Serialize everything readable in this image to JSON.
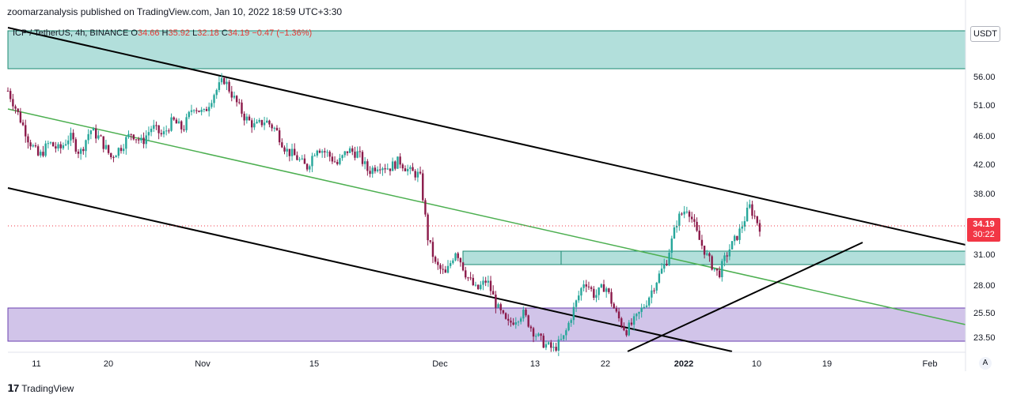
{
  "header": {
    "attribution": "zoomarzanalysis published on TradingView.com, Jan 10, 2022 18:59 UTC+3:30"
  },
  "legend": {
    "symbol": "ICP / TetherUS, 4h, BINANCE",
    "open_label": "O",
    "open": "34.66",
    "high_label": "H",
    "high": "35.92",
    "low_label": "L",
    "low": "32.18",
    "close_label": "C",
    "close": "34.19",
    "change": "−0.47 (−1.36%)"
  },
  "currency": "USDT",
  "last_price": {
    "price": "34.19",
    "countdown": "30:22"
  },
  "auto_button": "A",
  "footer": {
    "logo_text": "TradingView"
  },
  "colors": {
    "up": "#26a69a",
    "down": "#ef5350",
    "wick_dark": "#8b1a4a",
    "green_zone": "#b2dfdb",
    "green_zone_border": "#1b8a70",
    "purple_zone": "#d1c4e9",
    "purple_zone_border": "#6a3fb0",
    "channel_line": "#000000",
    "mid_line": "#4caf50",
    "price_line": "#f23645"
  },
  "chart_data": {
    "type": "candlestick",
    "y_axis_ticks": [
      56.0,
      51.0,
      46.0,
      42.0,
      38.0,
      31.0,
      28.0,
      25.5,
      23.5
    ],
    "y_axis_labels": [
      "56.00",
      "51.00",
      "46.00",
      "42.00",
      "38.00",
      "31.00",
      "28.00",
      "25.50",
      "23.50"
    ],
    "x_axis_labels": [
      "11",
      "20",
      "Nov",
      "15",
      "Dec",
      "13",
      "22",
      "2022",
      "10",
      "19",
      "Feb"
    ],
    "x_axis_bold": [
      "2022"
    ],
    "timeframe": "4h",
    "last_close": 34.19,
    "path_points": [
      [
        0,
        53.5
      ],
      [
        0.02,
        49.5
      ],
      [
        0.04,
        45.5
      ],
      [
        0.06,
        43.0
      ],
      [
        0.08,
        45.0
      ],
      [
        0.1,
        44.0
      ],
      [
        0.12,
        46.0
      ],
      [
        0.14,
        43.5
      ],
      [
        0.16,
        47.0
      ],
      [
        0.18,
        45.5
      ],
      [
        0.2,
        43.0
      ],
      [
        0.22,
        44.5
      ],
      [
        0.24,
        46.5
      ],
      [
        0.26,
        45.0
      ],
      [
        0.28,
        47.5
      ],
      [
        0.3,
        46.0
      ],
      [
        0.32,
        48.5
      ],
      [
        0.34,
        47.0
      ],
      [
        0.36,
        51.0
      ],
      [
        0.38,
        49.5
      ],
      [
        0.4,
        53.0
      ],
      [
        0.42,
        55.5
      ],
      [
        0.44,
        52.0
      ],
      [
        0.46,
        49.0
      ],
      [
        0.48,
        47.5
      ],
      [
        0.5,
        48.5
      ],
      [
        0.52,
        47.0
      ],
      [
        0.54,
        44.0
      ],
      [
        0.56,
        43.0
      ],
      [
        0.58,
        41.5
      ],
      [
        0.6,
        44.5
      ],
      [
        0.62,
        43.5
      ],
      [
        0.64,
        42.0
      ],
      [
        0.66,
        44.0
      ],
      [
        0.68,
        43.5
      ],
      [
        0.7,
        41.0
      ],
      [
        0.72,
        42.0
      ],
      [
        0.74,
        41.5
      ],
      [
        0.76,
        42.5
      ],
      [
        0.78,
        41.0
      ],
      [
        0.8,
        40.5
      ],
      [
        0.815,
        33.0
      ],
      [
        0.83,
        30.0
      ],
      [
        0.85,
        29.0
      ],
      [
        0.87,
        31.5
      ],
      [
        0.89,
        29.0
      ],
      [
        0.91,
        27.5
      ],
      [
        0.93,
        28.5
      ],
      [
        0.95,
        26.0
      ],
      [
        0.97,
        24.5
      ],
      [
        1.0,
        25.5
      ],
      [
        1.02,
        24.0
      ],
      [
        1.04,
        23.0
      ],
      [
        1.06,
        22.5
      ],
      [
        1.08,
        23.5
      ],
      [
        1.1,
        26.0
      ],
      [
        1.12,
        28.5
      ],
      [
        1.14,
        27.0
      ],
      [
        1.16,
        28.0
      ],
      [
        1.18,
        25.5
      ],
      [
        1.2,
        24.0
      ],
      [
        1.22,
        25.0
      ],
      [
        1.24,
        26.5
      ],
      [
        1.26,
        28.5
      ],
      [
        1.28,
        30.5
      ],
      [
        1.3,
        35.0
      ],
      [
        1.32,
        36.5
      ],
      [
        1.34,
        33.0
      ],
      [
        1.36,
        30.5
      ],
      [
        1.38,
        29.0
      ],
      [
        1.4,
        31.5
      ],
      [
        1.42,
        33.5
      ],
      [
        1.44,
        36.5
      ],
      [
        1.46,
        34.19
      ]
    ],
    "zones": [
      {
        "name": "supply",
        "from": 57.3,
        "to": 63.5,
        "color": "green"
      },
      {
        "name": "flip",
        "from": 30.4,
        "to": 31.4,
        "color": "green"
      },
      {
        "name": "demand",
        "from": 23.5,
        "to": 25.8,
        "color": "purple"
      }
    ]
  }
}
